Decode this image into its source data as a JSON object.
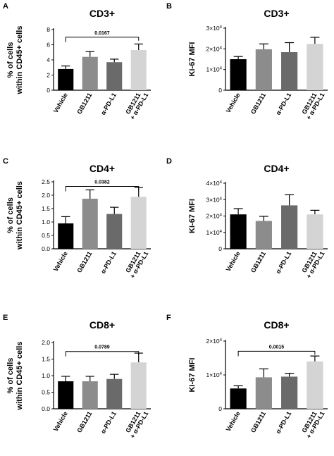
{
  "chart_data": [
    {
      "panel": "A",
      "type": "bar",
      "title": "CD3+",
      "ylabel": [
        "% of cells",
        "within CD45+ cells"
      ],
      "ylim": [
        0,
        8
      ],
      "yticks": [
        "0",
        "2",
        "4",
        "6",
        "8"
      ],
      "categories": [
        "Vehicle",
        "GB1211",
        "α-PD-L1",
        "GB1211|+ α-PD-L1"
      ],
      "values": [
        2.8,
        4.4,
        3.7,
        5.3
      ],
      "errors": [
        0.4,
        0.7,
        0.4,
        0.8
      ],
      "colors": [
        "#000000",
        "#8c8c8c",
        "#6a6a6a",
        "#d4d4d4"
      ],
      "comparison": {
        "from": 0,
        "to": 3,
        "label": "0.0167",
        "y": 7.0
      }
    },
    {
      "panel": "B",
      "type": "bar",
      "title": "CD3+",
      "ylabel": [
        "Ki-67 MFI"
      ],
      "ylim": [
        0,
        30000
      ],
      "yticks": [
        {
          "mantissa": "0",
          "exp": ""
        },
        {
          "mantissa": "1×10",
          "exp": "4"
        },
        {
          "mantissa": "2×10",
          "exp": "4"
        },
        {
          "mantissa": "3×10",
          "exp": "4"
        }
      ],
      "categories": [
        "Vehicle",
        "GB1211",
        "α-PD-L1",
        "GB1211|+ α-PD-L1"
      ],
      "values": [
        15000,
        19800,
        18400,
        22400
      ],
      "errors": [
        1300,
        2600,
        4600,
        3200
      ],
      "colors": [
        "#000000",
        "#8c8c8c",
        "#6a6a6a",
        "#d4d4d4"
      ]
    },
    {
      "panel": "C",
      "type": "bar",
      "title": "CD4+",
      "ylabel": [
        "% of cells",
        "within CD45+ cells"
      ],
      "ylim": [
        0,
        2.5
      ],
      "yticks": [
        "0.0",
        "0.5",
        "1.0",
        "1.5",
        "2.0",
        "2.5"
      ],
      "categories": [
        "Vehicle",
        "GB1211",
        "α-PD-L1",
        "GB1211|+ α-PD-L1"
      ],
      "values": [
        0.95,
        1.87,
        1.3,
        1.94
      ],
      "errors": [
        0.25,
        0.33,
        0.25,
        0.35
      ],
      "colors": [
        "#000000",
        "#8c8c8c",
        "#6a6a6a",
        "#d4d4d4"
      ],
      "comparison": {
        "from": 0,
        "to": 3,
        "label": "0.0382",
        "y": 2.33
      }
    },
    {
      "panel": "D",
      "type": "bar",
      "title": "CD4+",
      "ylabel": [
        "Ki-67 MFI"
      ],
      "ylim": [
        0,
        40000
      ],
      "yticks": [
        {
          "mantissa": "0",
          "exp": ""
        },
        {
          "mantissa": "1×10",
          "exp": "4"
        },
        {
          "mantissa": "2×10",
          "exp": "4"
        },
        {
          "mantissa": "3×10",
          "exp": "4"
        },
        {
          "mantissa": "4×10",
          "exp": "4"
        }
      ],
      "categories": [
        "Vehicle",
        "GB1211",
        "α-PD-L1",
        "GB1211|+ α-PD-L1"
      ],
      "values": [
        21000,
        17000,
        26500,
        21000
      ],
      "errors": [
        3500,
        2800,
        6500,
        2500
      ],
      "colors": [
        "#000000",
        "#8c8c8c",
        "#6a6a6a",
        "#d4d4d4"
      ]
    },
    {
      "panel": "E",
      "type": "bar",
      "title": "CD8+",
      "ylabel": [
        "% of cells",
        "within CD45+ cells"
      ],
      "ylim": [
        0,
        2.0
      ],
      "yticks": [
        "0.0",
        "0.5",
        "1.0",
        "1.5",
        "2.0"
      ],
      "categories": [
        "Vehicle",
        "GB1211",
        "α-PD-L1",
        "GB1211|+ α-PD-L1"
      ],
      "values": [
        0.83,
        0.83,
        0.9,
        1.4
      ],
      "errors": [
        0.15,
        0.15,
        0.14,
        0.28
      ],
      "colors": [
        "#000000",
        "#8c8c8c",
        "#6a6a6a",
        "#d4d4d4"
      ],
      "comparison": {
        "from": 0,
        "to": 3,
        "label": "0.0789",
        "y": 1.73
      }
    },
    {
      "panel": "F",
      "type": "bar",
      "title": "CD8+",
      "ylabel": [
        "Ki-67 MFI"
      ],
      "ylim": [
        0,
        20000
      ],
      "yticks": [
        {
          "mantissa": "0",
          "exp": ""
        },
        {
          "mantissa": "1×10",
          "exp": "4"
        },
        {
          "mantissa": "2×10",
          "exp": "4"
        }
      ],
      "categories": [
        "Vehicle",
        "GB1211",
        "α-PD-L1",
        "GB1211|+ α-PD-L1"
      ],
      "values": [
        6000,
        9300,
        9500,
        14000
      ],
      "errors": [
        800,
        2500,
        1000,
        1600
      ],
      "colors": [
        "#000000",
        "#8c8c8c",
        "#6a6a6a",
        "#d4d4d4"
      ],
      "comparison": {
        "from": 0,
        "to": 3,
        "label": "0.0015",
        "y": 17000
      }
    }
  ]
}
